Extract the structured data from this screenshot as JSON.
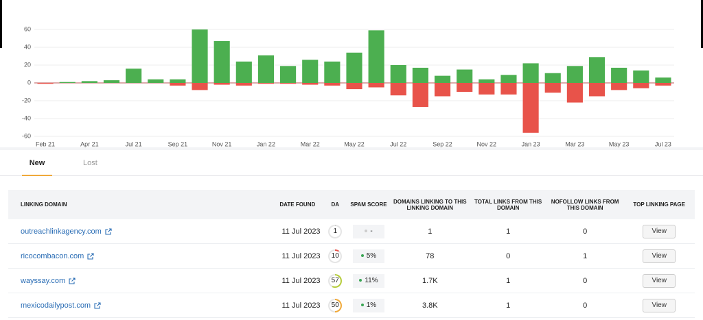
{
  "chart_data": {
    "type": "bar",
    "categories": [
      "Feb 21",
      null,
      "Apr 21",
      null,
      "Jul 21",
      null,
      "Sep 21",
      null,
      "Nov 21",
      null,
      "Jan 22",
      null,
      "Mar 22",
      null,
      "May 22",
      null,
      "Jul 22",
      null,
      "Sep 22",
      null,
      "Nov 22",
      null,
      "Jan 23",
      null,
      "Mar 23",
      null,
      "May 23",
      null,
      "Jul 23"
    ],
    "series": [
      {
        "color": "#4caf50",
        "values": [
          0,
          1,
          2,
          3,
          16,
          4,
          4,
          60,
          47,
          24,
          31,
          19,
          26,
          24,
          34,
          59,
          20,
          17,
          8,
          15,
          4,
          9,
          22,
          11,
          19,
          29,
          17,
          14,
          6
        ]
      },
      {
        "color": "#e8534a",
        "values": [
          -1,
          0,
          0,
          0,
          0,
          0,
          -3,
          -8,
          -2,
          -3,
          -1,
          -1,
          -2,
          -3,
          -7,
          -5,
          -14,
          -27,
          -15,
          -10,
          -13,
          -13,
          -56,
          -11,
          -22,
          -15,
          -8,
          -6,
          -3
        ]
      }
    ],
    "ylim": [
      -60,
      60
    ],
    "yticks": [
      -60,
      -40,
      -20,
      0,
      20,
      40,
      60
    ],
    "grid": true
  },
  "tabs": [
    "New",
    "Lost"
  ],
  "table": {
    "columns": [
      "LINKING DOMAIN",
      "DATE FOUND",
      "DA",
      "SPAM SCORE",
      "DOMAINS LINKING TO THIS LINKING DOMAIN",
      "TOTAL LINKS FROM THIS DOMAIN",
      "NOFOLLOW LINKS FROM THIS DOMAIN",
      "TOP LINKING PAGE"
    ],
    "rows": [
      [
        "outreachlinkagency.com",
        "11 Jul 2023",
        "1",
        "-",
        "1",
        "1",
        "0",
        "View"
      ],
      [
        "ricocombacon.com",
        "11 Jul 2023",
        "10",
        "5%",
        "78",
        "0",
        "1",
        "View"
      ],
      [
        "wayssay.com",
        "11 Jul 2023",
        "57",
        "11%",
        "1.7K",
        "1",
        "0",
        "View"
      ],
      [
        "mexicodailypost.com",
        "11 Jul 2023",
        "50",
        "1%",
        "3.8K",
        "1",
        "0",
        "View"
      ]
    ]
  }
}
